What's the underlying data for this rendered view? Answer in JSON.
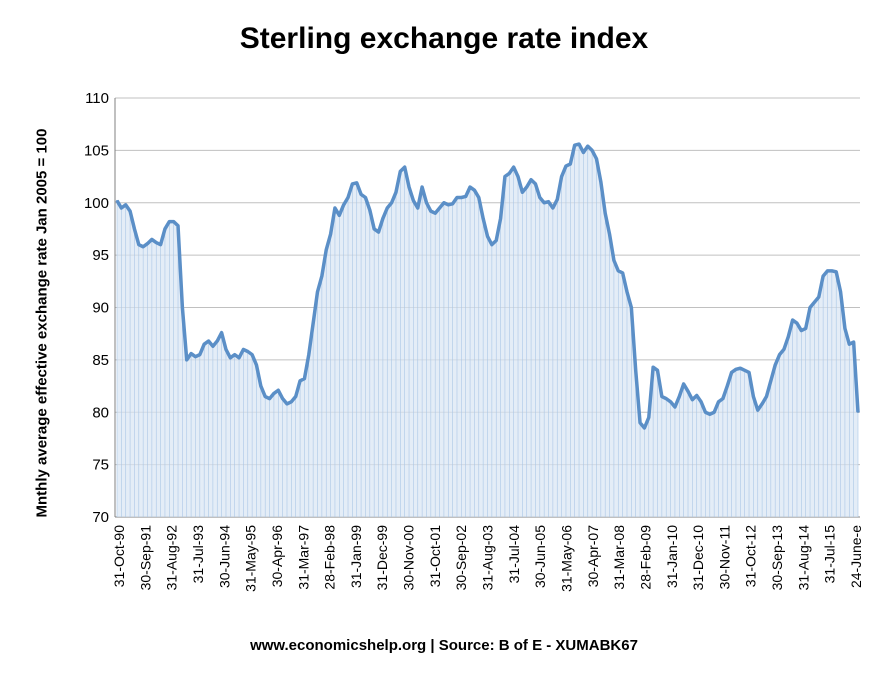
{
  "chart_data": {
    "type": "area",
    "title": "Sterling exchange rate index",
    "ylabel": "Mnthly average effective exchange rate  Jan 2005 = 100",
    "xlabel": "",
    "ylim": [
      70,
      110
    ],
    "yticks": [
      70,
      75,
      80,
      85,
      90,
      95,
      100,
      105,
      110
    ],
    "grid": true,
    "legend": "none",
    "colors": {
      "line": "#5b8fc7",
      "fill": "#d9e6f4",
      "grid": "#c0c0c0"
    },
    "x_tick_labels": [
      "31-Oct-90",
      "30-Sep-91",
      "31-Aug-92",
      "31-Jul-93",
      "30-Jun-94",
      "31-May-95",
      "30-Apr-96",
      "31-Mar-97",
      "28-Feb-98",
      "31-Jan-99",
      "31-Dec-99",
      "30-Nov-00",
      "31-Oct-01",
      "30-Sep-02",
      "31-Aug-03",
      "31-Jul-04",
      "30-Jun-05",
      "31-May-06",
      "30-Apr-07",
      "31-Mar-08",
      "28-Feb-09",
      "31-Jan-10",
      "31-Dec-10",
      "30-Nov-11",
      "31-Oct-12",
      "30-Sep-13",
      "31-Aug-14",
      "31-Jul-15",
      "24-June-e"
    ],
    "series": [
      {
        "values": [
          100.2,
          99.5,
          99.8,
          99.2,
          97.5,
          96.0,
          95.8,
          96.1,
          96.5,
          96.2,
          96.0,
          97.5,
          98.2,
          98.2,
          97.8,
          90.0,
          85.0,
          85.6,
          85.3,
          85.5,
          86.5,
          86.8,
          86.3,
          86.8,
          87.6,
          86.0,
          85.2,
          85.5,
          85.2,
          86.0,
          85.8,
          85.5,
          84.5,
          82.5,
          81.5,
          81.3,
          81.8,
          82.1,
          81.3,
          80.8,
          81.0,
          81.5,
          83.0,
          83.2,
          85.5,
          88.5,
          91.5,
          93.0,
          95.5,
          97.0,
          99.5,
          98.8,
          99.8,
          100.5,
          101.8,
          101.9,
          100.8,
          100.5,
          99.3,
          97.5,
          97.2,
          98.5,
          99.5,
          100.0,
          101.0,
          103.0,
          103.4,
          101.5,
          100.2,
          99.5,
          101.5,
          100.0,
          99.2,
          99.0,
          99.5,
          100.0,
          99.8,
          99.9,
          100.5,
          100.5,
          100.6,
          101.5,
          101.2,
          100.5,
          98.5,
          96.8,
          96.0,
          96.4,
          98.5,
          102.5,
          102.8,
          103.4,
          102.5,
          101.0,
          101.5,
          102.2,
          101.8,
          100.5,
          100.0,
          100.1,
          99.5,
          100.3,
          102.5,
          103.5,
          103.7,
          105.5,
          105.6,
          104.8,
          105.4,
          105.0,
          104.2,
          102.0,
          99.0,
          97.0,
          94.5,
          93.5,
          93.3,
          91.5,
          90.0,
          84.0,
          79.0,
          78.5,
          79.5,
          84.3,
          84.0,
          81.5,
          81.3,
          81.0,
          80.5,
          81.5,
          82.7,
          82.0,
          81.2,
          81.6,
          81.0,
          80.0,
          79.8,
          80.0,
          81.0,
          81.3,
          82.5,
          83.8,
          84.1,
          84.2,
          84.0,
          83.8,
          81.5,
          80.2,
          80.8,
          81.5,
          83.0,
          84.5,
          85.5,
          86.0,
          87.2,
          88.8,
          88.5,
          87.8,
          88.0,
          90.0,
          90.5,
          91.0,
          93.0,
          93.5,
          93.5,
          93.4,
          91.5,
          88.0,
          86.5,
          86.7,
          80.0
        ]
      }
    ]
  },
  "footer": {
    "text": "www.economicshelp.org | Source: B of E - XUMABK67"
  }
}
